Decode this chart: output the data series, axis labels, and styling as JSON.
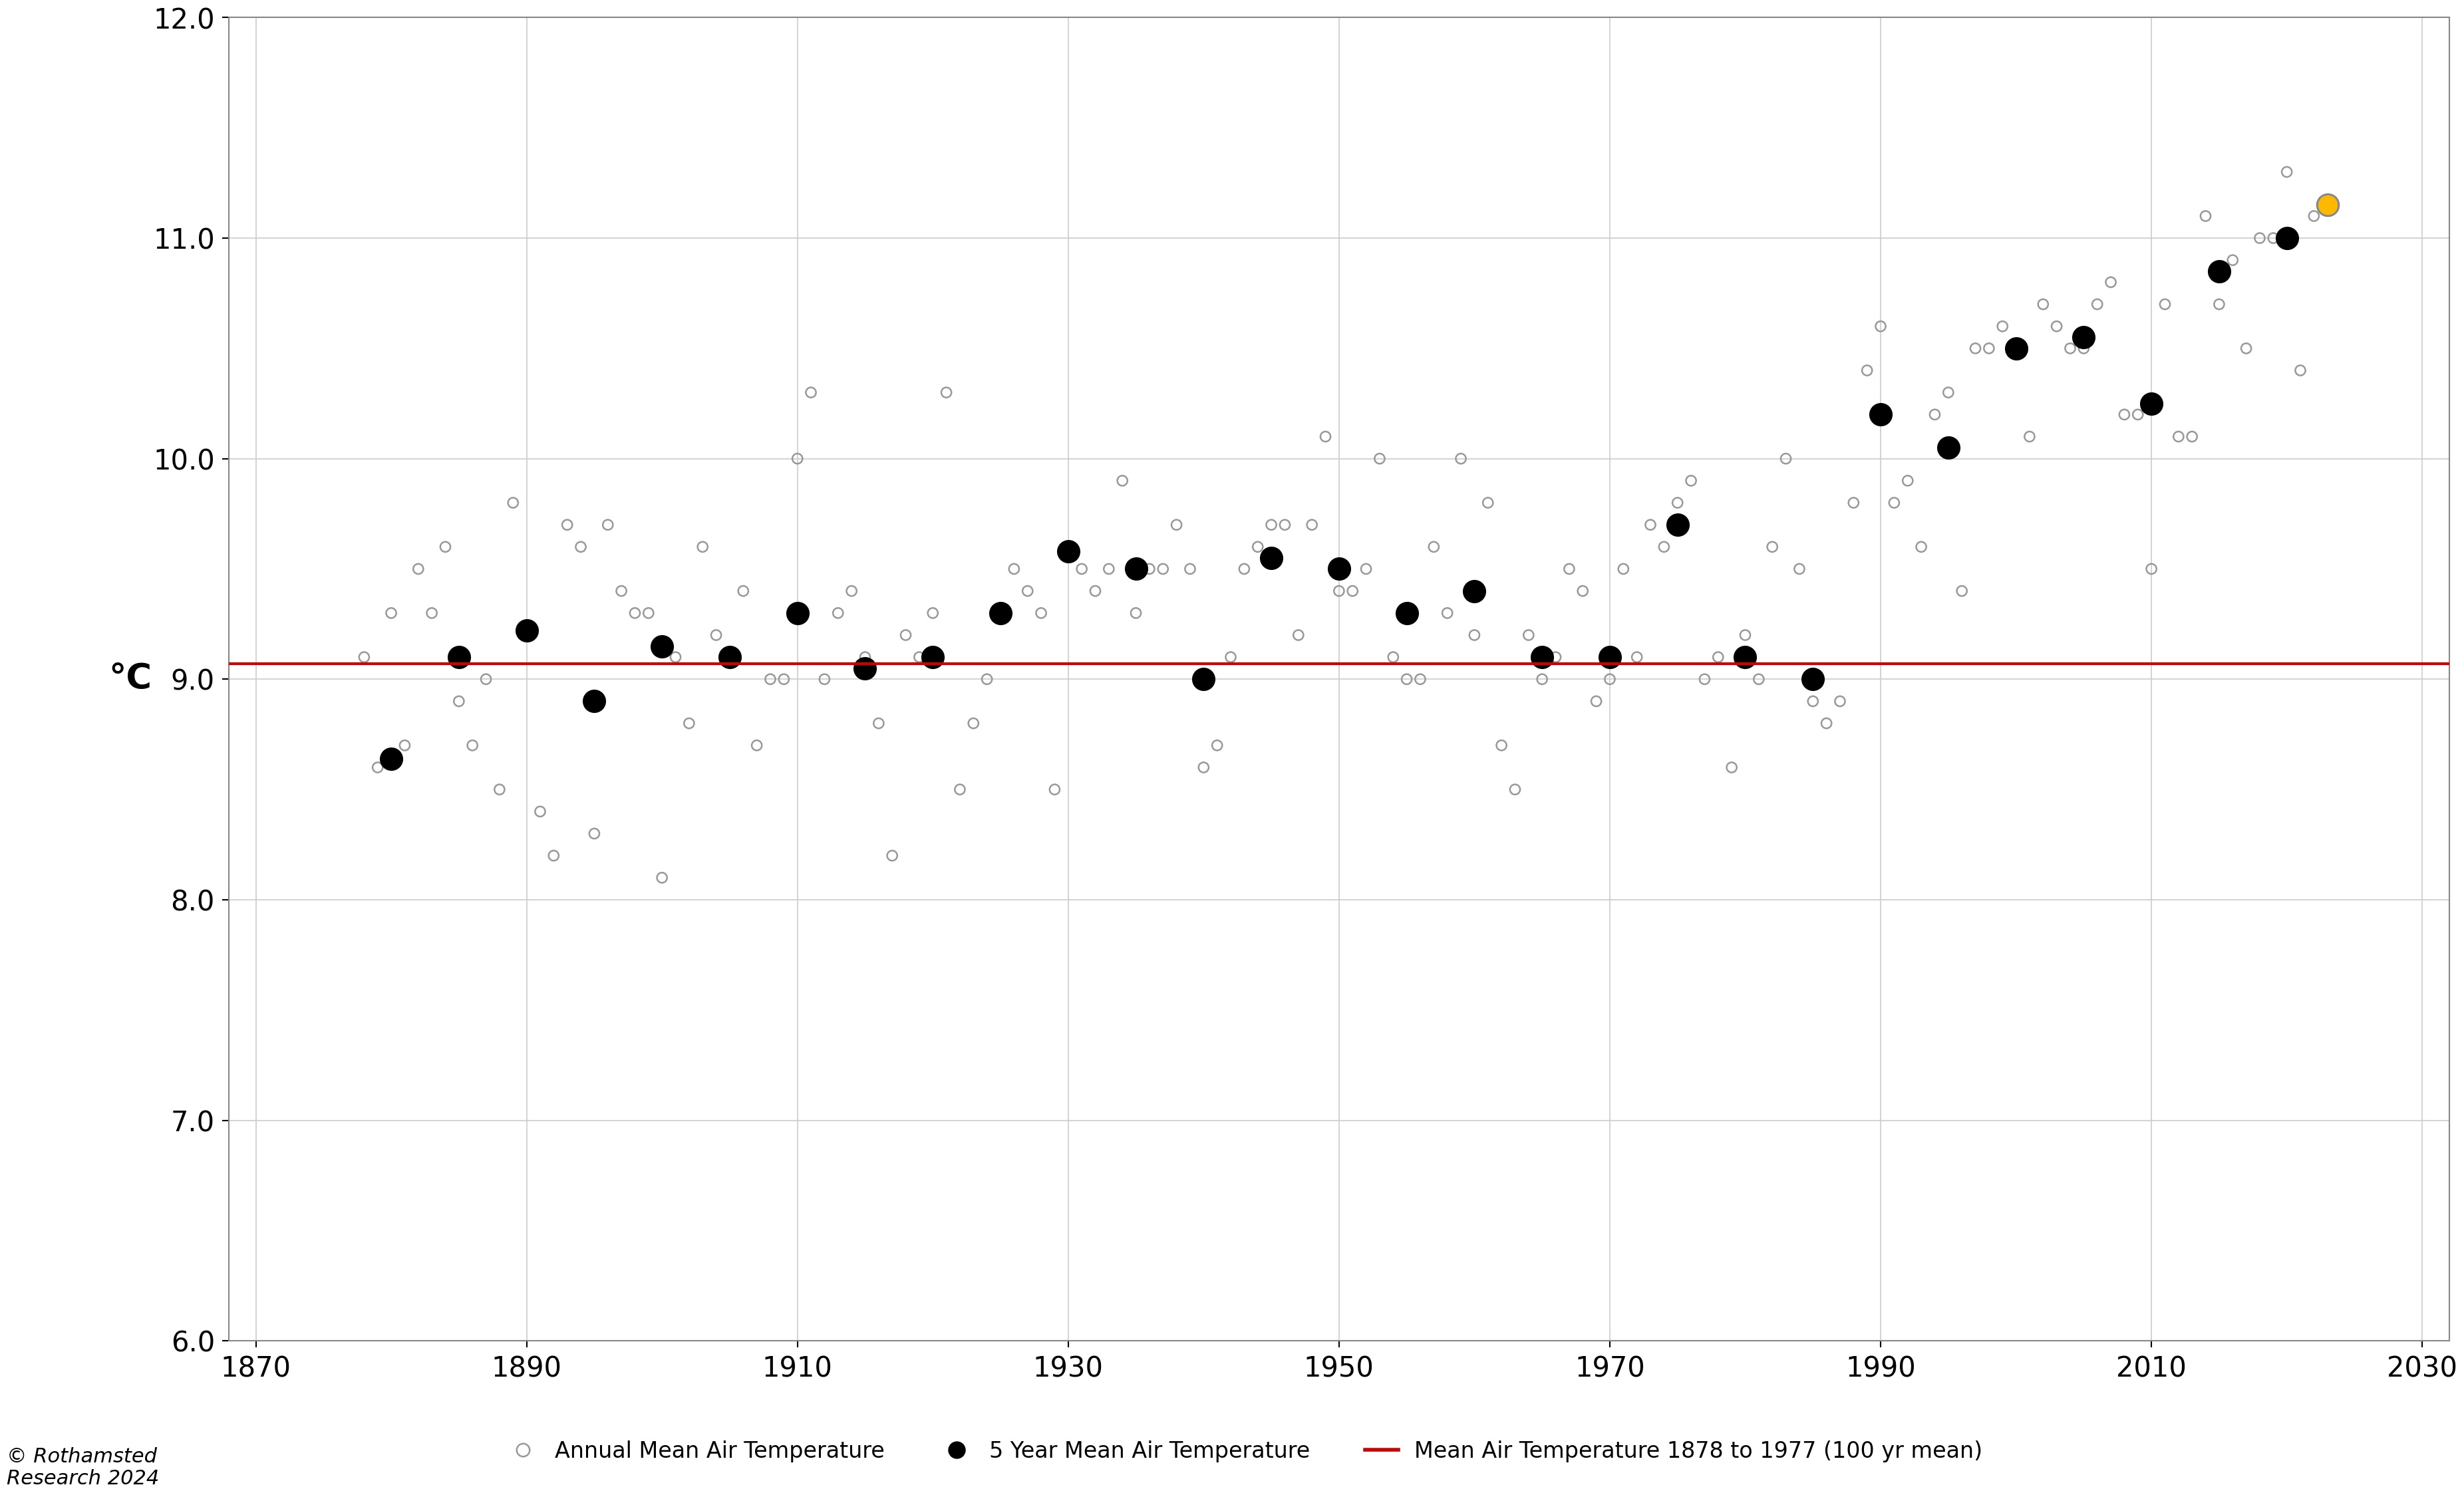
{
  "annual_years": [
    1878,
    1879,
    1880,
    1881,
    1882,
    1883,
    1884,
    1885,
    1886,
    1887,
    1888,
    1889,
    1890,
    1891,
    1892,
    1893,
    1894,
    1895,
    1896,
    1897,
    1898,
    1899,
    1900,
    1901,
    1902,
    1903,
    1904,
    1905,
    1906,
    1907,
    1908,
    1909,
    1910,
    1911,
    1912,
    1913,
    1914,
    1915,
    1916,
    1917,
    1918,
    1919,
    1920,
    1921,
    1922,
    1923,
    1924,
    1925,
    1926,
    1927,
    1928,
    1929,
    1930,
    1931,
    1932,
    1933,
    1934,
    1935,
    1936,
    1937,
    1938,
    1939,
    1940,
    1941,
    1942,
    1943,
    1944,
    1945,
    1946,
    1947,
    1948,
    1949,
    1950,
    1951,
    1952,
    1953,
    1954,
    1955,
    1956,
    1957,
    1958,
    1959,
    1960,
    1961,
    1962,
    1963,
    1964,
    1965,
    1966,
    1967,
    1968,
    1969,
    1970,
    1971,
    1972,
    1973,
    1974,
    1975,
    1976,
    1977,
    1978,
    1979,
    1980,
    1981,
    1982,
    1983,
    1984,
    1985,
    1986,
    1987,
    1988,
    1989,
    1990,
    1991,
    1992,
    1993,
    1994,
    1995,
    1996,
    1997,
    1998,
    1999,
    2000,
    2001,
    2002,
    2003,
    2004,
    2005,
    2006,
    2007,
    2008,
    2009,
    2010,
    2011,
    2012,
    2013,
    2014,
    2015,
    2016,
    2017,
    2018,
    2019,
    2020,
    2021,
    2022,
    2023
  ],
  "annual_temps": [
    9.1,
    8.6,
    9.3,
    8.7,
    9.5,
    9.3,
    9.6,
    8.9,
    8.7,
    9.0,
    8.5,
    9.8,
    9.2,
    8.4,
    8.2,
    9.7,
    9.6,
    8.3,
    9.7,
    9.4,
    9.3,
    9.3,
    8.1,
    9.1,
    8.8,
    9.6,
    9.2,
    9.1,
    9.4,
    8.7,
    9.0,
    9.0,
    10.0,
    10.3,
    9.0,
    9.3,
    9.4,
    9.1,
    8.8,
    8.2,
    9.2,
    9.1,
    9.3,
    10.3,
    8.5,
    8.8,
    9.0,
    9.3,
    9.5,
    9.4,
    9.3,
    8.5,
    9.6,
    9.5,
    9.4,
    9.5,
    9.9,
    9.3,
    9.5,
    9.5,
    9.7,
    9.5,
    8.6,
    8.7,
    9.1,
    9.5,
    9.6,
    9.7,
    9.7,
    9.2,
    9.7,
    10.1,
    9.4,
    9.4,
    9.5,
    10.0,
    9.1,
    9.0,
    9.0,
    9.6,
    9.3,
    10.0,
    9.2,
    9.8,
    8.7,
    8.5,
    9.2,
    9.0,
    9.1,
    9.5,
    9.4,
    8.9,
    9.0,
    9.5,
    9.1,
    9.7,
    9.6,
    9.8,
    9.9,
    9.0,
    9.1,
    8.6,
    9.2,
    9.0,
    9.6,
    10.0,
    9.5,
    8.9,
    8.8,
    8.9,
    9.8,
    10.4,
    10.6,
    9.8,
    9.9,
    9.6,
    10.2,
    10.3,
    9.4,
    10.5,
    10.5,
    10.6,
    10.5,
    10.1,
    10.7,
    10.6,
    10.5,
    10.5,
    10.7,
    10.8,
    10.2,
    10.2,
    9.5,
    10.7,
    10.1,
    10.1,
    11.1,
    10.7,
    10.9,
    10.5,
    11.0,
    11.0,
    11.3,
    10.4,
    11.1,
    11.15
  ],
  "fiveyear_years": [
    1880,
    1885,
    1890,
    1895,
    1900,
    1905,
    1910,
    1915,
    1920,
    1925,
    1930,
    1935,
    1940,
    1945,
    1950,
    1955,
    1960,
    1965,
    1970,
    1975,
    1980,
    1985,
    1990,
    1995,
    2000,
    2005,
    2010,
    2015,
    2020
  ],
  "fiveyear_temps": [
    8.64,
    9.1,
    9.22,
    8.9,
    9.15,
    9.1,
    9.3,
    9.05,
    9.1,
    9.3,
    9.58,
    9.5,
    9.0,
    9.55,
    9.5,
    9.3,
    9.4,
    9.1,
    9.1,
    9.7,
    9.1,
    9.0,
    10.2,
    10.05,
    10.5,
    10.55,
    10.25,
    10.85,
    11.0
  ],
  "hundred_year_mean": 9.07,
  "hundred_year_start": 1868,
  "hundred_year_end": 2032,
  "highlight_year": 2023,
  "highlight_temp": 11.15,
  "xlim": [
    1868,
    2032
  ],
  "ylim": [
    6.0,
    12.0
  ],
  "xticks": [
    1870,
    1890,
    1910,
    1930,
    1950,
    1970,
    1990,
    2010,
    2030
  ],
  "yticks": [
    6.0,
    7.0,
    8.0,
    9.0,
    10.0,
    11.0,
    12.0
  ],
  "ylabel": "°C",
  "annual_color": "#999999",
  "fiveyear_color": "#000000",
  "mean_line_color": "#cc0000",
  "highlight_color": "#FFB800",
  "highlight_edge_color": "#888888",
  "background_color": "#ffffff",
  "grid_color": "#cccccc",
  "copyright_line1": "© Rothamsted",
  "copyright_line2": "Research 2024",
  "legend_annual": "Annual Mean Air Temperature",
  "legend_5yr": "5 Year Mean Air Temperature",
  "legend_mean": "Mean Air Temperature 1878 to 1977 (100 yr mean)",
  "annual_marker_size": 120,
  "fiveyear_marker_size": 550,
  "highlight_marker_size": 550,
  "annual_linewidth": 1.8,
  "fiveyear_linewidth": 1.8,
  "mean_linewidth": 3.0,
  "tick_fontsize": 30,
  "ylabel_fontsize": 38,
  "legend_fontsize": 24,
  "copyright_fontsize": 22
}
